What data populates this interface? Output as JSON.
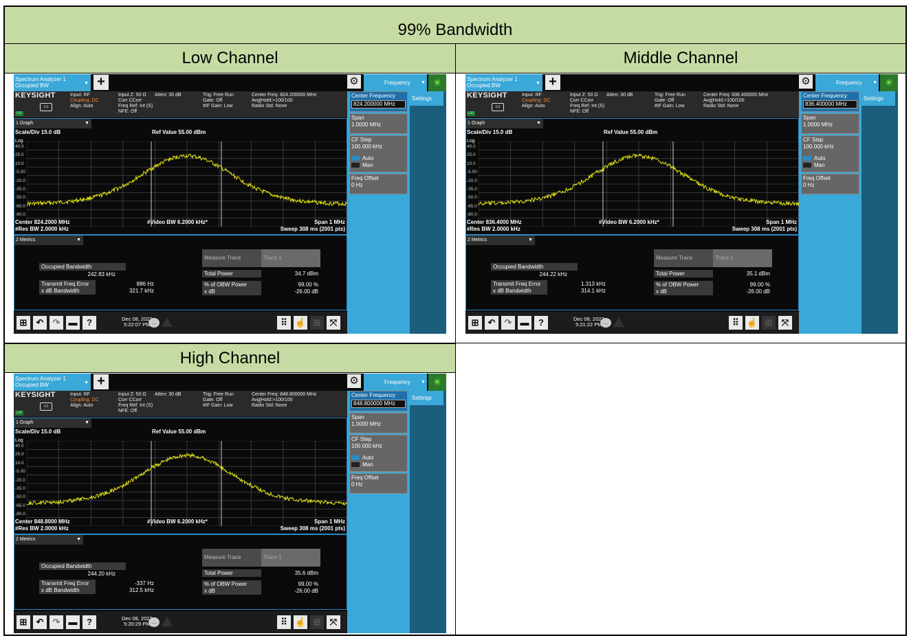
{
  "table": {
    "title": "99% Bandwidth",
    "headers": {
      "low": "Low Channel",
      "mid": "Middle Channel",
      "high": "High Channel"
    }
  },
  "screens": {
    "low": {
      "tab_title": "Spectrum Analyzer 1",
      "tab_sub": "Occupied BW",
      "freq_tab": "Frequency",
      "brand": "KEYSIGHT",
      "input": "Input: RF",
      "coupling": "Coupling: DC",
      "align": "Align: Auto",
      "inputz": "Input Z: 50 Ω",
      "corr": "Corr CCorr",
      "freqref": "Freq Ref: Int (S)",
      "nfe": "NFE: Off",
      "atten": "Atten: 30 dB",
      "trig": "Trig: Free Run",
      "gate": "Gate: Off",
      "ifgain": "#IF Gain: Low",
      "cfreq_info": "Center Freq: 824.200000 MHz",
      "avg": "Avg|Hold:>100/100",
      "radio": "Radio Std: None",
      "graph_sel": "1 Graph",
      "scale": "Scale/Div 15.0 dB",
      "ref": "Ref Value 55.00 dBm",
      "log": "Log",
      "ylabels": [
        "40.0",
        "25.0",
        "10.0",
        "-5.00",
        "-20.0",
        "-35.0",
        "-50.0",
        "-65.0",
        "-80.0"
      ],
      "center": "Center 824.2000 MHz",
      "resbw": "#Res BW 2.0000 kHz",
      "vbw": "#Video BW 6.2000 kHz*",
      "span": "Span 1 MHz",
      "sweep": "Sweep 308 ms (2001 pts)",
      "metrics_sel": "2 Metrics",
      "obw_label": "Occupied Bandwidth",
      "obw_value": "242.83 kHz",
      "tfe_label": "Transmit Freq Error",
      "tfe_value": "886 Hz",
      "xdb_label": "x dB Bandwidth",
      "xdb_value": "321.7 kHz",
      "measure": "Measure Trace",
      "trace": "Trace 1",
      "tp_label": "Total Power",
      "tp_value": "34.7 dBm",
      "pct_label": "% of OBW Power",
      "pct_value": "99.00 %",
      "xdb2_label": "x dB",
      "xdb2_value": "-26.00 dB",
      "date": "Dec 08, 2022",
      "time": "5:22:07 PM",
      "sk_cf_label": "Center Frequency",
      "sk_cf_value": "824.200000 MHz",
      "sk_span_label": "Span",
      "sk_span_value": "1.0000 MHz",
      "sk_cfstep_label": "CF Step",
      "sk_cfstep_value": "100.000 kHz",
      "sk_auto": "Auto",
      "sk_man": "Man",
      "sk_off_label": "Freq Offset",
      "sk_off_value": "0 Hz",
      "settings": "Settings"
    },
    "mid": {
      "tab_title": "Spectrum Analyzer 1",
      "tab_sub": "Occupied BW",
      "freq_tab": "Frequency",
      "brand": "KEYSIGHT",
      "input": "Input: RF",
      "coupling": "Coupling: DC",
      "align": "Align: Auto",
      "inputz": "Input Z: 50 Ω",
      "corr": "Corr CCorr",
      "freqref": "Freq Ref: Int (S)",
      "nfe": "NFE: Off",
      "atten": "Atten: 30 dB",
      "trig": "Trig: Free Run",
      "gate": "Gate: Off",
      "ifgain": "#IF Gain: Low",
      "cfreq_info": "Center Freq: 836.400000 MHz",
      "avg": "Avg|Hold:>100/100",
      "radio": "Radio Std: None",
      "graph_sel": "1 Graph",
      "scale": "Scale/Div 15.0 dB",
      "ref": "Ref Value 55.00 dBm",
      "log": "Log",
      "ylabels": [
        "40.0",
        "25.0",
        "10.0",
        "-5.00",
        "-20.0",
        "-35.0",
        "-50.0",
        "-65.0",
        "-80.0"
      ],
      "center": "Center 836.4000 MHz",
      "resbw": "#Res BW 2.0000 kHz",
      "vbw": "#Video BW 6.2000 kHz*",
      "span": "Span 1 MHz",
      "sweep": "Sweep 308 ms (2001 pts)",
      "metrics_sel": "2 Metrics",
      "obw_label": "Occupied Bandwidth",
      "obw_value": "244.22 kHz",
      "tfe_label": "Transmit Freq Error",
      "tfe_value": "1.313 kHz",
      "xdb_label": "x dB Bandwidth",
      "xdb_value": "314.1 kHz",
      "measure": "Measure Trace",
      "trace": "Trace 1",
      "tp_label": "Total Power",
      "tp_value": "35.1 dBm",
      "pct_label": "% of OBW Power",
      "pct_value": "99.00 %",
      "xdb2_label": "x dB",
      "xdb2_value": "-26.00 dB",
      "date": "Dec 08, 2022",
      "time": "5:21:22 PM",
      "sk_cf_label": "Center Frequency",
      "sk_cf_value": "836.400000 MHz",
      "sk_span_label": "Span",
      "sk_span_value": "1.0000 MHz",
      "sk_cfstep_label": "CF Step",
      "sk_cfstep_value": "100.000 kHz",
      "sk_auto": "Auto",
      "sk_man": "Man",
      "sk_off_label": "Freq Offset",
      "sk_off_value": "0 Hz",
      "settings": "Settings"
    },
    "high": {
      "tab_title": "Spectrum Analyzer 1",
      "tab_sub": "Occupied BW",
      "freq_tab": "Frequency",
      "brand": "KEYSIGHT",
      "input": "Input: RF",
      "coupling": "Coupling: DC",
      "align": "Align: Auto",
      "inputz": "Input Z: 50 Ω",
      "corr": "Corr CCorr",
      "freqref": "Freq Ref: Int (S)",
      "nfe": "NFE: Off",
      "atten": "Atten: 30 dB",
      "trig": "Trig: Free Run",
      "gate": "Gate: Off",
      "ifgain": "#IF Gain: Low",
      "cfreq_info": "Center Freq: 848.800000 MHz",
      "avg": "Avg|Hold:>100/100",
      "radio": "Radio Std: None",
      "graph_sel": "1 Graph",
      "scale": "Scale/Div 15.0 dB",
      "ref": "Ref Value 55.00 dBm",
      "log": "Log",
      "ylabels": [
        "40.0",
        "25.0",
        "10.0",
        "-5.00",
        "-20.0",
        "-35.0",
        "-50.0",
        "-65.0",
        "-80.0"
      ],
      "center": "Center 848.8000 MHz",
      "resbw": "#Res BW 2.0000 kHz",
      "vbw": "#Video BW 6.2000 kHz*",
      "span": "Span 1 MHz",
      "sweep": "Sweep 308 ms (2001 pts)",
      "metrics_sel": "2 Metrics",
      "obw_label": "Occupied Bandwidth",
      "obw_value": "244.20 kHz",
      "tfe_label": "Transmit Freq Error",
      "tfe_value": "-337 Hz",
      "xdb_label": "x dB Bandwidth",
      "xdb_value": "312.5 kHz",
      "measure": "Measure Trace",
      "trace": "Trace 1",
      "tp_label": "Total Power",
      "tp_value": "35.6 dBm",
      "pct_label": "% of OBW Power",
      "pct_value": "99.00 %",
      "xdb2_label": "x dB",
      "xdb2_value": "-26.00 dB",
      "date": "Dec 08, 2022",
      "time": "5:20:29 PM",
      "sk_cf_label": "Center Frequency",
      "sk_cf_value": "848.800000 MHz",
      "sk_span_label": "Span",
      "sk_span_value": "1.0000 MHz",
      "sk_cfstep_label": "CF Step",
      "sk_cfstep_value": "100.000 kHz",
      "sk_auto": "Auto",
      "sk_man": "Man",
      "sk_off_label": "Freq Offset",
      "sk_off_value": "0 Hz",
      "settings": "Settings"
    }
  },
  "colors": {
    "header_bg": "#c6dba3",
    "trace": "#e8e817",
    "softkey_bg": "#3aa8d8"
  },
  "icons": [
    "windows-icon",
    "undo-icon",
    "redo-icon",
    "folder-icon",
    "help-icon",
    "chat-icon",
    "warning-icon",
    "keypad-icon",
    "touch-icon",
    "grid-icon",
    "fullscreen-icon",
    "gear-icon",
    "plus-icon",
    "spinner-icon",
    "monitor-icon"
  ]
}
